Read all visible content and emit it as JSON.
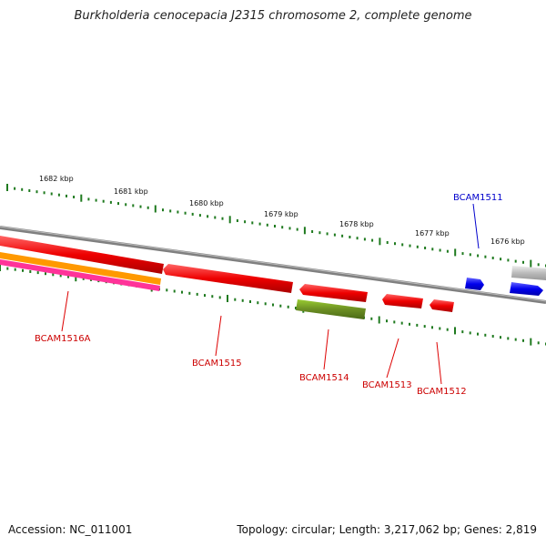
{
  "title": "Burkholderia cenocepacia J2315 chromosome 2, complete genome",
  "footer": {
    "accession": "Accession: NC_011001",
    "summary": "Topology: circular; Length: 3,217,062 bp; Genes: 2,819"
  },
  "ruler": [
    "1682 kbp",
    "1681 kbp",
    "1680 kbp",
    "1679 kbp",
    "1678 kbp",
    "1677 kbp",
    "1676 kbp"
  ],
  "genes": [
    "BCAM1516A",
    "BCAM1515",
    "BCAM1514",
    "BCAM1513",
    "BCAM1512",
    "BCAM1511"
  ],
  "colors": {
    "backbone": "#808080",
    "tick": "#1f7a1f",
    "red": "#ee0000",
    "orange": "#ff9900",
    "pink": "#ff3399",
    "olive": "#6b8e23",
    "blue": "#0000ee",
    "grey": "#bbbbbb"
  }
}
